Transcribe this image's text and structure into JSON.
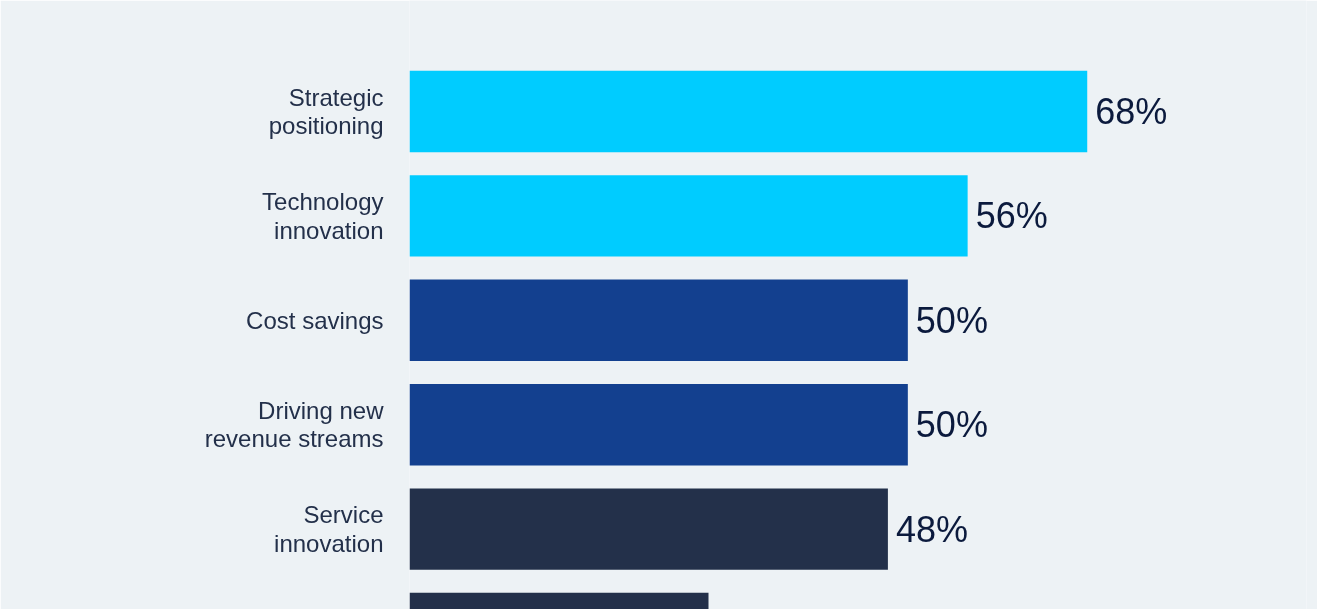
{
  "chart_data": {
    "type": "bar",
    "orientation": "horizontal",
    "categories": [
      "Strategic\npositioning",
      "Technology\ninnovation",
      "Cost savings",
      "Driving new\nrevenue streams",
      "Service\ninnovation",
      null
    ],
    "values": [
      68,
      56,
      50,
      50,
      48,
      30
    ],
    "colors": [
      "#00ccff",
      "#00ccff",
      "#13408f",
      "#13408f",
      "#23304a",
      "#23304a"
    ],
    "value_labels": [
      "68%",
      "56%",
      "50%",
      "50%",
      "48%",
      null
    ],
    "xlim": [
      0,
      90
    ],
    "tick_labels": "y",
    "grid": false
  }
}
